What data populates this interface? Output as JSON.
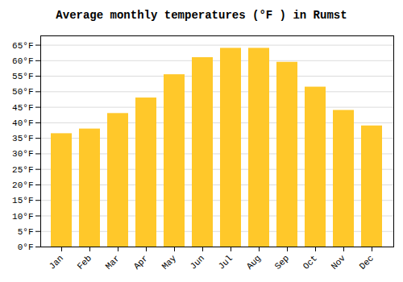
{
  "chart_data": {
    "type": "bar",
    "title": "Average monthly temperatures (°F ) in Rumst",
    "categories": [
      "Jan",
      "Feb",
      "Mar",
      "Apr",
      "May",
      "Jun",
      "Jul",
      "Aug",
      "Sep",
      "Oct",
      "Nov",
      "Dec"
    ],
    "values": [
      36.5,
      38.0,
      43.0,
      48.0,
      55.5,
      61.0,
      64.0,
      64.0,
      59.5,
      51.5,
      44.0,
      39.0
    ],
    "color": "#FFC82A",
    "ylim": [
      0,
      68
    ],
    "yticks": [
      {
        "value": 0,
        "label": "0°F"
      },
      {
        "value": 5,
        "label": "5°F"
      },
      {
        "value": 10,
        "label": "10°F"
      },
      {
        "value": 15,
        "label": "15°F"
      },
      {
        "value": 20,
        "label": "20°F"
      },
      {
        "value": 25,
        "label": "25°F"
      },
      {
        "value": 30,
        "label": "30°F"
      },
      {
        "value": 35,
        "label": "35°F"
      },
      {
        "value": 40,
        "label": "40°F"
      },
      {
        "value": 45,
        "label": "45°F"
      },
      {
        "value": 50,
        "label": "50°F"
      },
      {
        "value": 55,
        "label": "55°F"
      },
      {
        "value": 60,
        "label": "60°F"
      },
      {
        "value": 65,
        "label": "65°F"
      }
    ],
    "grid": true
  }
}
